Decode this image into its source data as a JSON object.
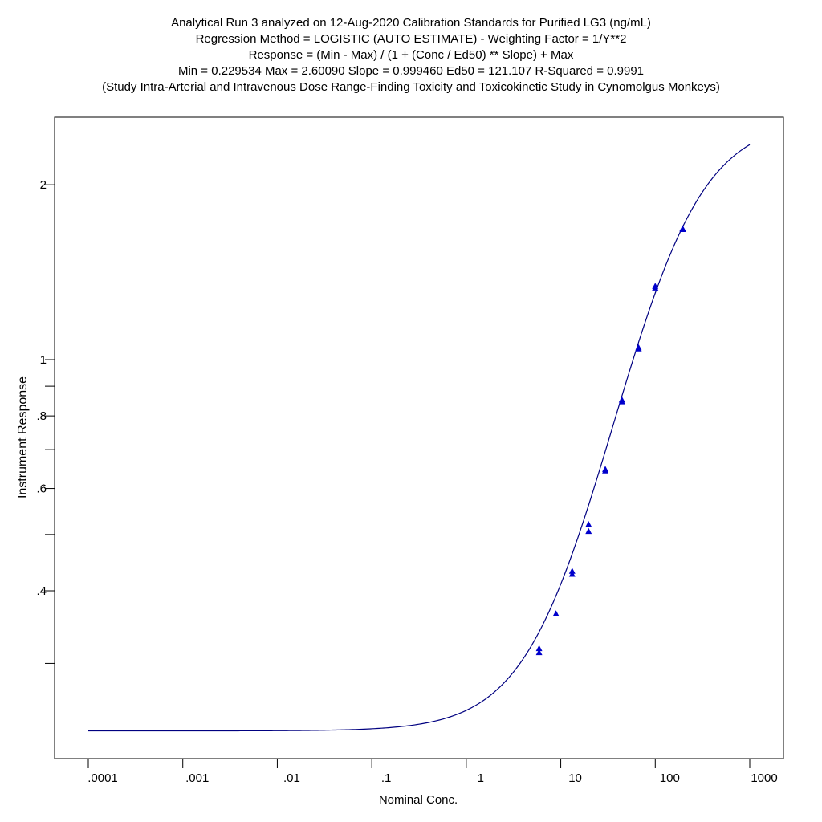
{
  "chart_data": {
    "type": "scatter",
    "title_lines": [
      "Analytical Run 3 analyzed on 12-Aug-2020 Calibration Standards for Purified LG3 (ng/mL)",
      "Regression Method = LOGISTIC (AUTO ESTIMATE) - Weighting Factor = 1/Y**2",
      "Response = (Min - Max) / (1 + (Conc / Ed50) ** Slope) + Max",
      "Min = 0.229534 Max = 2.60090 Slope = 0.999460 Ed50 = 121.107 R-Squared = 0.9991",
      "(Study Intra-Arterial and Intravenous Dose Range-Finding Toxicity and Toxicokinetic Study in Cynomolgus Monkeys)"
    ],
    "xlabel": "Nominal Conc.",
    "ylabel": "Instrument Response",
    "x_scale": "log",
    "y_scale": "log",
    "xlim": [
      0.0001,
      1000
    ],
    "ylim": [
      0.19,
      2.6
    ],
    "x_ticks": [
      {
        "value": 0.0001,
        "label": ".0001"
      },
      {
        "value": 0.001,
        "label": ".001"
      },
      {
        "value": 0.01,
        "label": ".01"
      },
      {
        "value": 0.1,
        "label": ".1"
      },
      {
        "value": 1,
        "label": "1"
      },
      {
        "value": 10,
        "label": "10"
      },
      {
        "value": 100,
        "label": "100"
      },
      {
        "value": 1000,
        "label": "1000"
      }
    ],
    "y_ticks": [
      {
        "value": 2,
        "label": "2"
      },
      {
        "value": 1,
        "label": "1"
      },
      {
        "value": 0.9,
        "label": ""
      },
      {
        "value": 0.8,
        "label": ".8"
      },
      {
        "value": 0.7,
        "label": ""
      },
      {
        "value": 0.6,
        "label": ".6"
      },
      {
        "value": 0.5,
        "label": ""
      },
      {
        "value": 0.4,
        "label": ".4"
      },
      {
        "value": 0.3,
        "label": ""
      }
    ],
    "grid": false,
    "legend": "none",
    "fit": {
      "model": "logistic",
      "min": 0.229534,
      "max": 2.6009,
      "slope": 0.99946,
      "ed50": 121.107,
      "x_range": [
        0.0001,
        1000
      ],
      "color": "#000080"
    },
    "points_color": "#0000cc",
    "points": [
      {
        "x": 5.9,
        "y": 0.318
      },
      {
        "x": 5.9,
        "y": 0.313
      },
      {
        "x": 8.9,
        "y": 0.365
      },
      {
        "x": 13.2,
        "y": 0.432
      },
      {
        "x": 13.2,
        "y": 0.427
      },
      {
        "x": 19.7,
        "y": 0.52
      },
      {
        "x": 19.7,
        "y": 0.506
      },
      {
        "x": 29.6,
        "y": 0.647
      },
      {
        "x": 29.6,
        "y": 0.643
      },
      {
        "x": 44.4,
        "y": 0.852
      },
      {
        "x": 44.4,
        "y": 0.846
      },
      {
        "x": 66.6,
        "y": 1.048
      },
      {
        "x": 66.6,
        "y": 1.043
      },
      {
        "x": 99.9,
        "y": 1.337
      },
      {
        "x": 99.9,
        "y": 1.328
      },
      {
        "x": 195,
        "y": 1.68
      },
      {
        "x": 195,
        "y": 1.674
      }
    ]
  }
}
